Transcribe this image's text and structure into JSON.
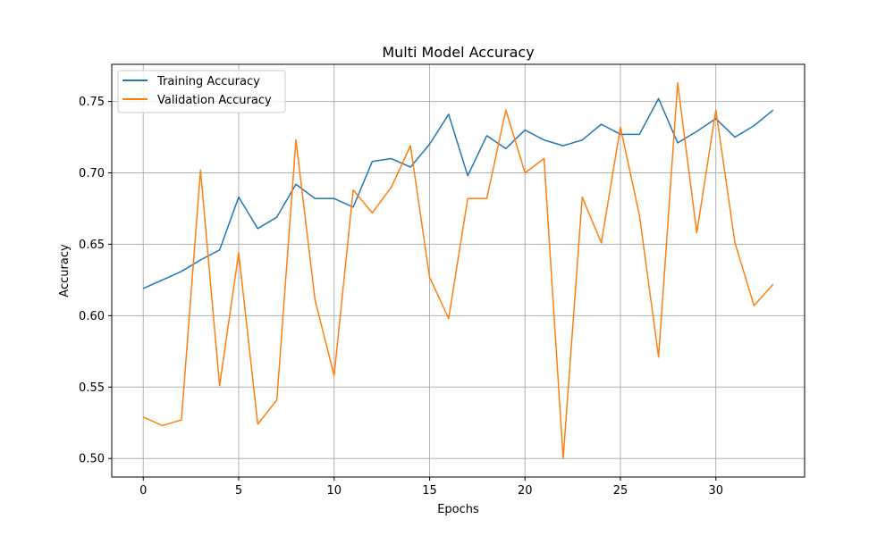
{
  "chart_data": {
    "type": "line",
    "title": "Multi Model Accuracy",
    "xlabel": "Epochs",
    "ylabel": "Accuracy",
    "xlim": [
      -1.65,
      34.65
    ],
    "ylim": [
      0.487,
      0.776
    ],
    "xticks": [
      0,
      5,
      10,
      15,
      20,
      25,
      30
    ],
    "yticks": [
      0.5,
      0.55,
      0.6,
      0.65,
      0.7,
      0.75
    ],
    "ytick_labels": [
      "0.50",
      "0.55",
      "0.60",
      "0.65",
      "0.70",
      "0.75"
    ],
    "grid": true,
    "legend_position": "top-left",
    "x": [
      0,
      1,
      2,
      3,
      4,
      5,
      6,
      7,
      8,
      9,
      10,
      11,
      12,
      13,
      14,
      15,
      16,
      17,
      18,
      19,
      20,
      21,
      22,
      23,
      24,
      25,
      26,
      27,
      28,
      29,
      30,
      31,
      32,
      33
    ],
    "series": [
      {
        "name": "Training Accuracy",
        "color": "#1f77b4",
        "values": [
          0.619,
          0.625,
          0.631,
          0.639,
          0.646,
          0.683,
          0.661,
          0.669,
          0.692,
          0.682,
          0.682,
          0.676,
          0.708,
          0.71,
          0.704,
          0.72,
          0.741,
          0.698,
          0.726,
          0.717,
          0.73,
          0.723,
          0.719,
          0.723,
          0.734,
          0.727,
          0.727,
          0.752,
          0.721,
          0.729,
          0.738,
          0.725,
          0.733,
          0.744
        ]
      },
      {
        "name": "Validation Accuracy",
        "color": "#ff7f0e",
        "values": [
          0.529,
          0.523,
          0.527,
          0.702,
          0.551,
          0.644,
          0.524,
          0.541,
          0.723,
          0.611,
          0.558,
          0.688,
          0.672,
          0.69,
          0.719,
          0.627,
          0.598,
          0.682,
          0.682,
          0.744,
          0.7,
          0.71,
          0.5,
          0.683,
          0.651,
          0.732,
          0.67,
          0.571,
          0.763,
          0.658,
          0.744,
          0.651,
          0.607,
          0.622
        ]
      }
    ]
  }
}
